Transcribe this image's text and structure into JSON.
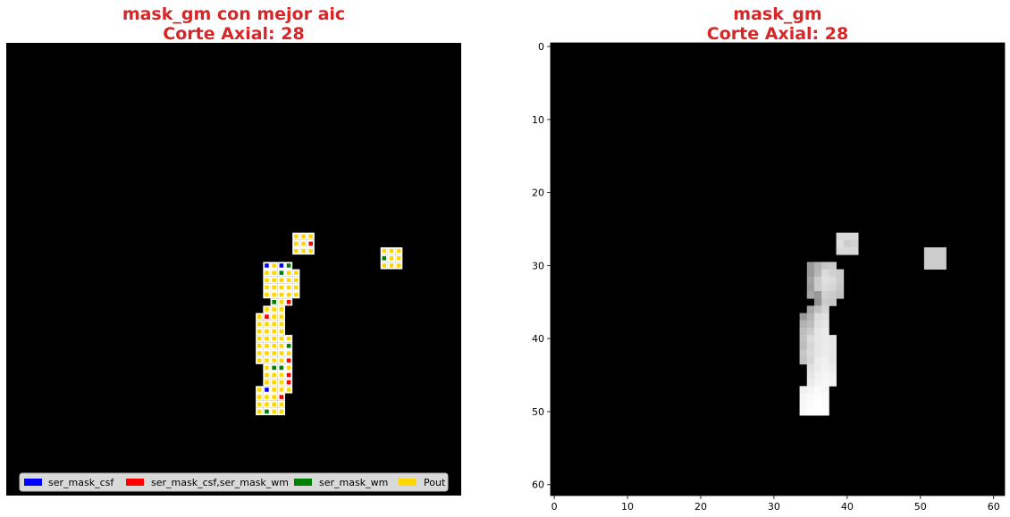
{
  "figure": {
    "left_panel": {
      "title_line1": "mask_gm con mejor aic",
      "title_line2": "Corte Axial: 28"
    },
    "right_panel": {
      "title_line1": "mask_gm",
      "title_line2": "Corte Axial: 28"
    }
  },
  "chart_data": [
    {
      "type": "heatmap",
      "title": "mask_gm con mejor aic\nCorte Axial: 28",
      "axes_visible": false,
      "grid_size": [
        62,
        62
      ],
      "background": "#000000",
      "legend": {
        "placement": "lower-center",
        "entries": [
          {
            "label": "ser_mask_csf",
            "color": "#0000ff"
          },
          {
            "label": "ser_mask_csf,ser_mask_wm",
            "color": "#ff0000"
          },
          {
            "label": "ser_mask_wm",
            "color": "#008000"
          },
          {
            "label": "Pout",
            "color": "#ffd700"
          }
        ]
      },
      "voxel_marker_color": "#ffffff",
      "cells": [
        {
          "row": 26,
          "cols": [
            39,
            40,
            41
          ],
          "classes": [
            "Pout",
            "Pout",
            "Pout"
          ]
        },
        {
          "row": 27,
          "cols": [
            39,
            40,
            41
          ],
          "classes": [
            "Pout",
            "Pout",
            "ser_mask_csf,ser_mask_wm"
          ]
        },
        {
          "row": 28,
          "cols": [
            39,
            40,
            41
          ],
          "classes": [
            "Pout",
            "Pout",
            "Pout"
          ]
        },
        {
          "row": 28,
          "cols": [
            51,
            52,
            53
          ],
          "classes": [
            "Pout",
            "Pout",
            "Pout"
          ]
        },
        {
          "row": 29,
          "cols": [
            51,
            52,
            53
          ],
          "classes": [
            "ser_mask_wm",
            "Pout",
            "Pout"
          ]
        },
        {
          "row": 30,
          "cols": [
            51,
            52,
            53
          ],
          "classes": [
            "Pout",
            "Pout",
            "Pout"
          ]
        },
        {
          "row": 30,
          "cols": [
            35,
            36,
            37,
            38
          ],
          "classes": [
            "ser_mask_csf",
            "Pout",
            "ser_mask_csf",
            "ser_mask_wm"
          ]
        },
        {
          "row": 31,
          "cols": [
            35,
            36,
            37,
            38,
            39
          ],
          "classes": [
            "Pout",
            "Pout",
            "ser_mask_wm",
            "Pout",
            "Pout"
          ]
        },
        {
          "row": 32,
          "cols": [
            35,
            36,
            37,
            38,
            39
          ],
          "classes": [
            "Pout",
            "Pout",
            "Pout",
            "Pout",
            "Pout"
          ]
        },
        {
          "row": 33,
          "cols": [
            35,
            36,
            37,
            38,
            39
          ],
          "classes": [
            "Pout",
            "Pout",
            "Pout",
            "Pout",
            "Pout"
          ]
        },
        {
          "row": 34,
          "cols": [
            35,
            36,
            37,
            38,
            39
          ],
          "classes": [
            "Pout",
            "Pout",
            "Pout",
            "Pout",
            "Pout"
          ]
        },
        {
          "row": 35,
          "cols": [
            36,
            37,
            38
          ],
          "classes": [
            "ser_mask_wm",
            "Pout",
            "ser_mask_csf,ser_mask_wm"
          ]
        },
        {
          "row": 36,
          "cols": [
            35,
            36,
            37
          ],
          "classes": [
            "Pout",
            "Pout",
            "Pout"
          ]
        },
        {
          "row": 37,
          "cols": [
            34,
            35,
            36,
            37
          ],
          "classes": [
            "Pout",
            "ser_mask_csf,ser_mask_wm",
            "Pout",
            "Pout"
          ]
        },
        {
          "row": 38,
          "cols": [
            34,
            35,
            36,
            37
          ],
          "classes": [
            "Pout",
            "Pout",
            "Pout",
            "Pout"
          ]
        },
        {
          "row": 39,
          "cols": [
            34,
            35,
            36,
            37
          ],
          "classes": [
            "Pout",
            "Pout",
            "Pout",
            "Pout"
          ]
        },
        {
          "row": 40,
          "cols": [
            34,
            35,
            36,
            37,
            38
          ],
          "classes": [
            "Pout",
            "Pout",
            "Pout",
            "Pout",
            "Pout"
          ]
        },
        {
          "row": 41,
          "cols": [
            34,
            35,
            36,
            37,
            38
          ],
          "classes": [
            "Pout",
            "Pout",
            "Pout",
            "Pout",
            "ser_mask_wm"
          ]
        },
        {
          "row": 42,
          "cols": [
            34,
            35,
            36,
            37,
            38
          ],
          "classes": [
            "Pout",
            "Pout",
            "Pout",
            "Pout",
            "Pout"
          ]
        },
        {
          "row": 43,
          "cols": [
            34,
            35,
            36,
            37,
            38
          ],
          "classes": [
            "Pout",
            "Pout",
            "Pout",
            "Pout",
            "ser_mask_csf,ser_mask_wm"
          ]
        },
        {
          "row": 44,
          "cols": [
            35,
            36,
            37,
            38
          ],
          "classes": [
            "Pout",
            "ser_mask_wm",
            "ser_mask_wm",
            "Pout"
          ]
        },
        {
          "row": 45,
          "cols": [
            35,
            36,
            37,
            38
          ],
          "classes": [
            "Pout",
            "Pout",
            "Pout",
            "ser_mask_csf,ser_mask_wm"
          ]
        },
        {
          "row": 46,
          "cols": [
            35,
            36,
            37,
            38
          ],
          "classes": [
            "Pout",
            "Pout",
            "Pout",
            "ser_mask_csf,ser_mask_wm"
          ]
        },
        {
          "row": 47,
          "cols": [
            34,
            35,
            36,
            37,
            38
          ],
          "classes": [
            "Pout",
            "ser_mask_csf",
            "Pout",
            "Pout",
            "Pout"
          ]
        },
        {
          "row": 48,
          "cols": [
            34,
            35,
            36,
            37
          ],
          "classes": [
            "Pout",
            "Pout",
            "Pout",
            "ser_mask_csf,ser_mask_wm"
          ]
        },
        {
          "row": 49,
          "cols": [
            34,
            35,
            36,
            37
          ],
          "classes": [
            "Pout",
            "Pout",
            "Pout",
            "Pout"
          ]
        },
        {
          "row": 50,
          "cols": [
            34,
            35,
            36,
            37
          ],
          "classes": [
            "Pout",
            "ser_mask_wm",
            "Pout",
            "Pout"
          ]
        }
      ]
    },
    {
      "type": "heatmap",
      "title": "mask_gm\nCorte Axial: 28",
      "colormap": "gray",
      "grid_size": [
        62,
        62
      ],
      "xlim": [
        -0.5,
        61.5
      ],
      "ylim": [
        61.5,
        -0.5
      ],
      "x_ticks": [
        0,
        10,
        20,
        30,
        40,
        50,
        60
      ],
      "y_ticks": [
        0,
        10,
        20,
        30,
        40,
        50,
        60
      ],
      "cells": [
        {
          "row": 26,
          "cols": [
            39,
            40,
            41
          ],
          "values": [
            0.85,
            0.85,
            0.85
          ]
        },
        {
          "row": 27,
          "cols": [
            39,
            40,
            41
          ],
          "values": [
            0.88,
            0.8,
            0.82
          ]
        },
        {
          "row": 28,
          "cols": [
            39,
            40,
            41
          ],
          "values": [
            0.85,
            0.85,
            0.85
          ]
        },
        {
          "row": 28,
          "cols": [
            51,
            52,
            53
          ],
          "values": [
            0.8,
            0.8,
            0.8
          ]
        },
        {
          "row": 29,
          "cols": [
            51,
            52,
            53
          ],
          "values": [
            0.8,
            0.8,
            0.8
          ]
        },
        {
          "row": 30,
          "cols": [
            51,
            52,
            53
          ],
          "values": [
            0.8,
            0.8,
            0.8
          ]
        },
        {
          "row": 30,
          "cols": [
            35,
            36,
            37,
            38
          ],
          "values": [
            0.6,
            0.7,
            0.78,
            0.8
          ]
        },
        {
          "row": 31,
          "cols": [
            35,
            36,
            37,
            38,
            39
          ],
          "values": [
            0.6,
            0.72,
            0.86,
            0.82,
            0.8
          ]
        },
        {
          "row": 32,
          "cols": [
            35,
            36,
            37,
            38,
            39
          ],
          "values": [
            0.64,
            0.8,
            0.88,
            0.86,
            0.8
          ]
        },
        {
          "row": 33,
          "cols": [
            35,
            36,
            37,
            38,
            39
          ],
          "values": [
            0.62,
            0.8,
            0.86,
            0.84,
            0.78
          ]
        },
        {
          "row": 34,
          "cols": [
            35,
            36,
            37,
            38,
            39
          ],
          "values": [
            0.66,
            0.6,
            0.82,
            0.8,
            0.76
          ]
        },
        {
          "row": 35,
          "cols": [
            36,
            37,
            38
          ],
          "values": [
            0.58,
            0.8,
            0.78
          ]
        },
        {
          "row": 36,
          "cols": [
            35,
            36,
            37
          ],
          "values": [
            0.66,
            0.76,
            0.84
          ]
        },
        {
          "row": 37,
          "cols": [
            34,
            35,
            36,
            37
          ],
          "values": [
            0.6,
            0.7,
            0.86,
            0.88
          ]
        },
        {
          "row": 38,
          "cols": [
            34,
            35,
            36,
            37
          ],
          "values": [
            0.7,
            0.74,
            0.88,
            0.9
          ]
        },
        {
          "row": 39,
          "cols": [
            34,
            35,
            36,
            37
          ],
          "values": [
            0.74,
            0.8,
            0.9,
            0.92
          ]
        },
        {
          "row": 40,
          "cols": [
            34,
            35,
            36,
            37,
            38
          ],
          "values": [
            0.76,
            0.86,
            0.9,
            0.92,
            0.9
          ]
        },
        {
          "row": 41,
          "cols": [
            34,
            35,
            36,
            37,
            38
          ],
          "values": [
            0.74,
            0.84,
            0.9,
            0.92,
            0.9
          ]
        },
        {
          "row": 42,
          "cols": [
            34,
            35,
            36,
            37,
            38
          ],
          "values": [
            0.78,
            0.86,
            0.9,
            0.93,
            0.9
          ]
        },
        {
          "row": 43,
          "cols": [
            34,
            35,
            36,
            37,
            38
          ],
          "values": [
            0.76,
            0.84,
            0.92,
            0.94,
            0.9
          ]
        },
        {
          "row": 44,
          "cols": [
            35,
            36,
            37,
            38
          ],
          "values": [
            0.88,
            0.92,
            0.95,
            0.92
          ]
        },
        {
          "row": 45,
          "cols": [
            35,
            36,
            37,
            38
          ],
          "values": [
            0.9,
            0.94,
            0.96,
            0.94
          ]
        },
        {
          "row": 46,
          "cols": [
            35,
            36,
            37,
            38
          ],
          "values": [
            0.92,
            0.95,
            0.97,
            0.95
          ]
        },
        {
          "row": 47,
          "cols": [
            34,
            35,
            36,
            37
          ],
          "values": [
            0.94,
            0.96,
            0.98,
            0.97
          ]
        },
        {
          "row": 48,
          "cols": [
            34,
            35,
            36,
            37
          ],
          "values": [
            0.96,
            0.98,
            0.99,
            0.98
          ]
        },
        {
          "row": 49,
          "cols": [
            34,
            35,
            36,
            37
          ],
          "values": [
            0.97,
            0.99,
            1.0,
            0.99
          ]
        },
        {
          "row": 50,
          "cols": [
            34,
            35,
            36,
            37
          ],
          "values": [
            0.98,
            1.0,
            1.0,
            1.0
          ]
        }
      ]
    }
  ]
}
